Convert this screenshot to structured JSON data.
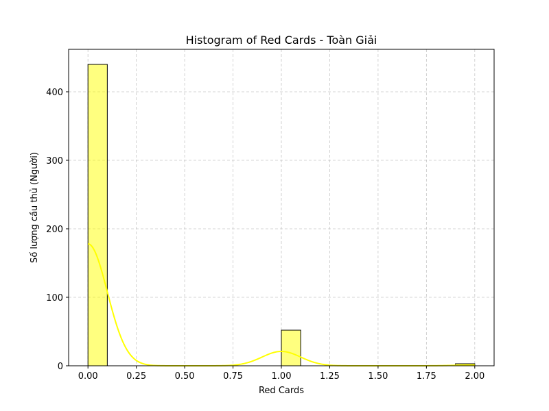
{
  "chart_data": {
    "type": "bar",
    "title": "Histogram of Red Cards - Toàn Giải",
    "xlabel": "Red Cards",
    "ylabel": "Số lượng cầu thủ (Người)",
    "xlim": [
      -0.1,
      2.1
    ],
    "ylim": [
      0,
      462
    ],
    "xticks": [
      0.0,
      0.25,
      0.5,
      0.75,
      1.0,
      1.25,
      1.5,
      1.75,
      2.0
    ],
    "xtick_labels": [
      "0.00",
      "0.25",
      "0.50",
      "0.75",
      "1.00",
      "1.25",
      "1.50",
      "1.75",
      "2.00"
    ],
    "yticks": [
      0,
      100,
      200,
      300,
      400
    ],
    "ytick_labels": [
      "0",
      "100",
      "200",
      "300",
      "400"
    ],
    "grid": true,
    "bar_color": "#ffff00",
    "bins": [
      {
        "x0": 0.0,
        "x1": 0.1,
        "count": 440
      },
      {
        "x0": 1.0,
        "x1": 1.1,
        "count": 52
      },
      {
        "x0": 1.9,
        "x1": 2.0,
        "count": 3
      }
    ],
    "kde": {
      "color": "#ffff00",
      "components": [
        {
          "mean": 0.0,
          "sd": 0.1,
          "peak": 178
        },
        {
          "mean": 1.0,
          "sd": 0.1,
          "peak": 21
        },
        {
          "mean": 2.0,
          "sd": 0.1,
          "peak": 1.2
        }
      ],
      "x_range": [
        0.0,
        2.0
      ]
    }
  }
}
